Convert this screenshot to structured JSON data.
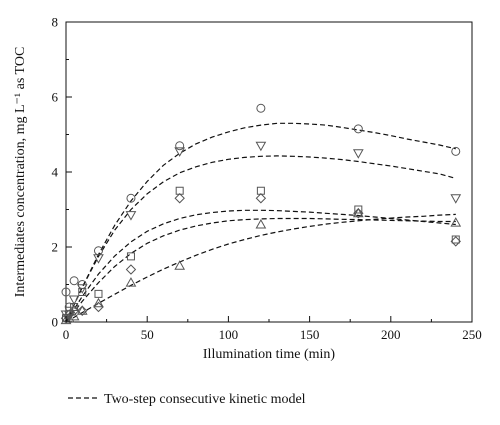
{
  "chart_data": {
    "type": "scatter",
    "xlabel": "Illumination time (min)",
    "ylabel": "Intermediates concentration, mg L⁻¹ as TOC",
    "xlim": [
      0,
      250
    ],
    "ylim": [
      0,
      8
    ],
    "xticks": [
      "0",
      "50",
      "100",
      "150",
      "200",
      "250"
    ],
    "yticks": [
      "0",
      "2",
      "4",
      "6",
      "8"
    ],
    "grid": false,
    "series": [
      {
        "marker": "circle",
        "x": [
          0,
          2,
          5,
          10,
          20,
          40,
          70,
          120,
          180,
          240
        ],
        "y": [
          0.8,
          0.4,
          1.1,
          1.0,
          1.9,
          3.3,
          4.7,
          5.7,
          5.15,
          4.55
        ]
      },
      {
        "marker": "triangle-down",
        "x": [
          0,
          2,
          5,
          10,
          20,
          40,
          70,
          120,
          180,
          240
        ],
        "y": [
          0.2,
          0.2,
          0.6,
          0.9,
          1.7,
          2.85,
          4.55,
          4.7,
          4.5,
          3.3
        ]
      },
      {
        "marker": "square",
        "x": [
          0,
          2,
          5,
          10,
          20,
          40,
          70,
          120,
          180,
          240
        ],
        "y": [
          0.1,
          0.3,
          0.4,
          0.8,
          0.75,
          1.75,
          3.5,
          3.5,
          3.0,
          2.2
        ]
      },
      {
        "marker": "diamond",
        "x": [
          0,
          2,
          5,
          10,
          20,
          40,
          70,
          120,
          180,
          240
        ],
        "y": [
          0.1,
          0.2,
          0.3,
          0.3,
          0.4,
          1.4,
          3.3,
          3.3,
          2.9,
          2.15
        ]
      },
      {
        "marker": "triangle-up",
        "x": [
          0,
          2,
          5,
          10,
          20,
          40,
          70,
          120,
          180,
          240
        ],
        "y": [
          0.05,
          0.1,
          0.15,
          0.3,
          0.5,
          1.05,
          1.5,
          2.6,
          2.9,
          2.65
        ]
      }
    ],
    "fits": [
      {
        "style": "dashed",
        "x": [
          0,
          10,
          20,
          30,
          40,
          50,
          60,
          70,
          80,
          90,
          100,
          110,
          120,
          130,
          140,
          150,
          160,
          170,
          180,
          190,
          200,
          210,
          220,
          230,
          240
        ],
        "y": [
          0,
          0.92,
          1.8,
          2.58,
          3.23,
          3.75,
          4.18,
          4.5,
          4.75,
          4.93,
          5.07,
          5.18,
          5.25,
          5.3,
          5.3,
          5.28,
          5.25,
          5.19,
          5.12,
          5.05,
          4.97,
          4.88,
          4.8,
          4.72,
          4.62
        ]
      },
      {
        "style": "dashed",
        "x": [
          0,
          10,
          20,
          30,
          40,
          50,
          60,
          70,
          80,
          90,
          100,
          110,
          120,
          130,
          140,
          150,
          160,
          170,
          180,
          190,
          200,
          210,
          220,
          230,
          240
        ],
        "y": [
          0,
          0.92,
          1.75,
          2.45,
          3.0,
          3.42,
          3.74,
          3.98,
          4.14,
          4.26,
          4.34,
          4.39,
          4.42,
          4.43,
          4.42,
          4.4,
          4.37,
          4.33,
          4.28,
          4.22,
          4.16,
          4.09,
          4.02,
          3.95,
          3.83
        ]
      },
      {
        "style": "dashed",
        "x": [
          0,
          10,
          20,
          30,
          40,
          50,
          60,
          70,
          80,
          90,
          100,
          110,
          120,
          130,
          140,
          150,
          160,
          170,
          180,
          190,
          200,
          210,
          220,
          230,
          240
        ],
        "y": [
          0,
          0.68,
          1.28,
          1.76,
          2.14,
          2.42,
          2.62,
          2.76,
          2.86,
          2.92,
          2.96,
          2.98,
          2.98,
          2.97,
          2.95,
          2.93,
          2.9,
          2.87,
          2.84,
          2.8,
          2.76,
          2.72,
          2.68,
          2.64,
          2.6
        ]
      },
      {
        "style": "dashed",
        "x": [
          0,
          10,
          20,
          30,
          40,
          50,
          60,
          70,
          80,
          90,
          100,
          110,
          120,
          130,
          140,
          150,
          160,
          170,
          180,
          190,
          200,
          210,
          220,
          230,
          240
        ],
        "y": [
          0,
          0.55,
          1.05,
          1.48,
          1.83,
          2.1,
          2.3,
          2.45,
          2.56,
          2.64,
          2.7,
          2.73,
          2.75,
          2.76,
          2.76,
          2.76,
          2.75,
          2.74,
          2.73,
          2.72,
          2.71,
          2.7,
          2.69,
          2.68,
          2.68
        ]
      },
      {
        "style": "dashed",
        "x": [
          0,
          10,
          20,
          30,
          40,
          50,
          60,
          70,
          80,
          90,
          100,
          110,
          120,
          130,
          140,
          150,
          160,
          170,
          180,
          190,
          200,
          210,
          220,
          230,
          240
        ],
        "y": [
          0,
          0.25,
          0.5,
          0.74,
          0.98,
          1.2,
          1.41,
          1.6,
          1.78,
          1.94,
          2.08,
          2.2,
          2.31,
          2.4,
          2.48,
          2.55,
          2.61,
          2.66,
          2.7,
          2.74,
          2.77,
          2.8,
          2.82,
          2.85,
          2.87
        ]
      }
    ],
    "legend": {
      "placement": "bottom-left",
      "entries": [
        {
          "label": "Two-step consecutive kinetic model",
          "style": "dashed"
        }
      ]
    }
  }
}
